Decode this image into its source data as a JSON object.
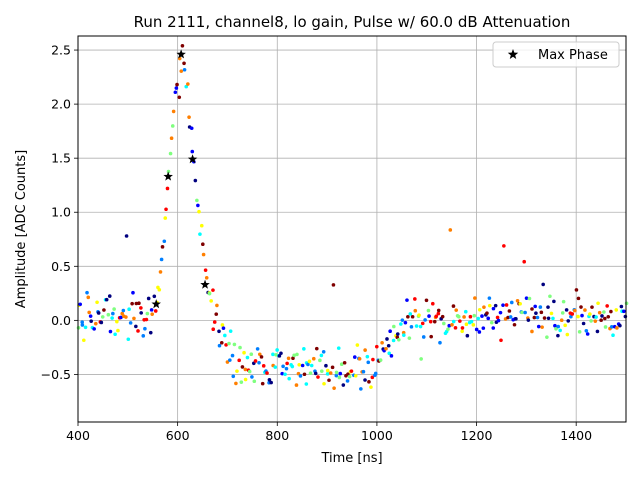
{
  "chart_data": {
    "type": "scatter",
    "title": "Run 2111, channel8, lo gain, Pulse w/ 60.0 dB Attenuation",
    "xlabel": "Time [ns]",
    "ylabel": "Amplitude [ADC Counts]",
    "xlim": [
      400,
      1500
    ],
    "ylim": [
      -0.94,
      2.63
    ],
    "x_ticks": [
      400,
      600,
      800,
      1000,
      1200,
      1400
    ],
    "x_tick_labels": [
      "400",
      "600",
      "800",
      "1000",
      "1200",
      "1400"
    ],
    "y_ticks": [
      -0.5,
      0.0,
      0.5,
      1.0,
      1.5,
      2.0,
      2.5
    ],
    "y_tick_labels": [
      "−0.5",
      "0.0",
      "0.5",
      "1.0",
      "1.5",
      "2.0",
      "2.5"
    ],
    "grid": true,
    "colormap": "jet",
    "colormap_colors": [
      "#00007f",
      "#0000ff",
      "#007fff",
      "#00ffff",
      "#7fff7f",
      "#ffff00",
      "#ff7f00",
      "#ff0000",
      "#7f0000"
    ],
    "waveform_profile": {
      "x": [
        400,
        545,
        555,
        565,
        575,
        585,
        595,
        605,
        612,
        620,
        630,
        640,
        650,
        660,
        670,
        680,
        690,
        700,
        720,
        750,
        800,
        850,
        900,
        950,
        1000,
        1020,
        1050,
        1100,
        1200,
        1300,
        1400,
        1500
      ],
      "y": [
        0.05,
        0.05,
        0.1,
        0.4,
        0.95,
        1.55,
        2.05,
        2.3,
        2.35,
        2.1,
        1.55,
        1.05,
        0.65,
        0.35,
        0.15,
        0.0,
        -0.15,
        -0.25,
        -0.35,
        -0.4,
        -0.42,
        -0.43,
        -0.45,
        -0.45,
        -0.4,
        -0.2,
        -0.05,
        0.0,
        0.02,
        0.03,
        0.03,
        0.03
      ]
    },
    "noise_sigma": 0.1,
    "sample_spacing_ns": 2.5,
    "series": [
      {
        "name": "Max Phase",
        "marker": "star",
        "color": "#000000",
        "x": [
          557,
          581,
          607,
          630,
          655
        ],
        "y": [
          0.15,
          1.33,
          2.46,
          1.49,
          0.33
        ]
      }
    ],
    "legend": {
      "position": "top-right",
      "entries": [
        "Max Phase"
      ]
    }
  }
}
